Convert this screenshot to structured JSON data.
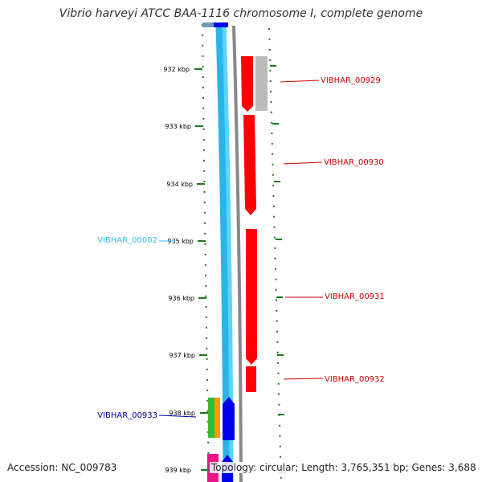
{
  "title": "Vibrio harveyi ATCC BAA-1116 chromosome I, complete genome",
  "footer": {
    "accession": "Accession: NC_009783",
    "topology": "Topology: circular; Length: 3,765,351 bp; Genes: 3,688"
  },
  "colors": {
    "tick": "#1a7a1a",
    "gene_red": "#ff0000",
    "gene_grey": "#bbbbbb",
    "gene_light_blue": "#33ccff",
    "gene_blue": "#0000ee",
    "gene_green": "#33bb33",
    "gene_orange": "#ff9900",
    "gene_pink": "#ee1188",
    "label_red": "#cc0000",
    "label_light_blue": "#33bbee",
    "label_blue": "#000099"
  },
  "ticks": [
    "932 kbp",
    "933 kbp",
    "934 kbp",
    "935 kbp",
    "936 kbp",
    "937 kbp",
    "938 kbp",
    "939 kbp"
  ],
  "gene_labels": [
    {
      "id": "gene-label-vibhar-00929",
      "text": "VIBHAR_00929",
      "color": "label_red"
    },
    {
      "id": "gene-label-vibhar-00930",
      "text": "VIBHAR_00930",
      "color": "label_red"
    },
    {
      "id": "gene-label-vibhar-00002",
      "text": "VIBHAR_00002",
      "color": "label_light_blue"
    },
    {
      "id": "gene-label-vibhar-00931",
      "text": "VIBHAR_00931",
      "color": "label_red"
    },
    {
      "id": "gene-label-vibhar-00932",
      "text": "VIBHAR_00932",
      "color": "label_red"
    },
    {
      "id": "gene-label-vibhar-00933",
      "text": "VIBHAR_00933",
      "color": "label_blue"
    }
  ]
}
